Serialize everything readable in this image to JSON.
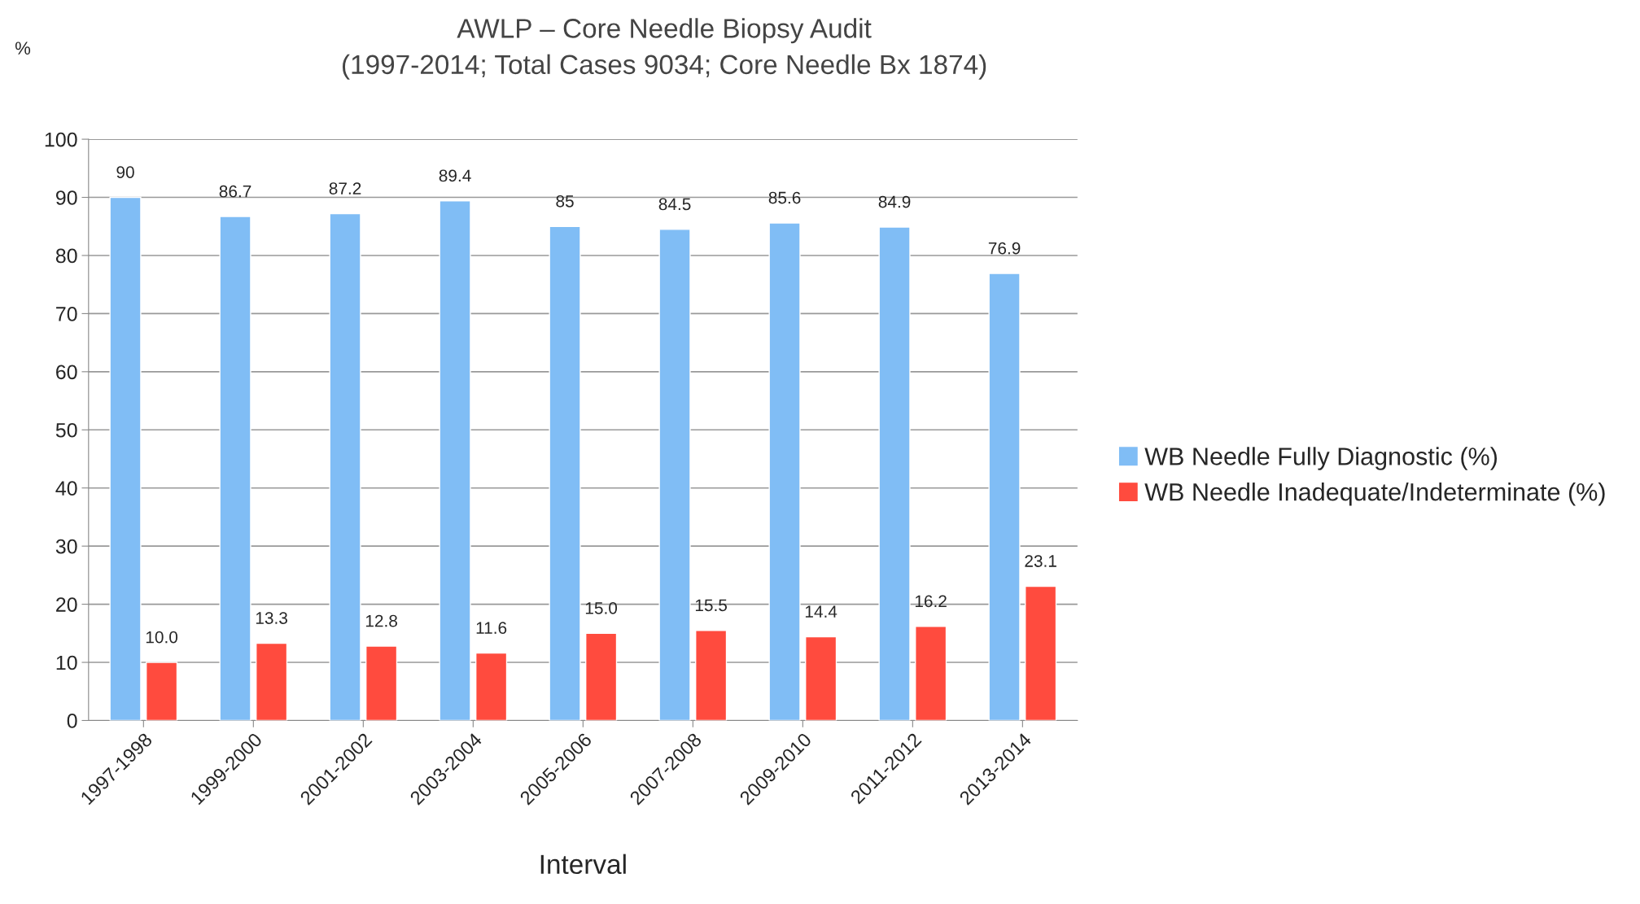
{
  "chart_data": {
    "type": "bar",
    "title": "AWLP – Core Needle Biopsy Audit",
    "subtitle": "(1997-2014; Total Cases 9034; Core Needle Bx 1874)",
    "ylabel": "%",
    "xlabel": "Interval",
    "categories": [
      "1997-1998",
      "1999-2000",
      "2001-2002",
      "2003-2004",
      "2005-2006",
      "2007-2008",
      "2009-2010",
      "2011-2012",
      "2013-2014"
    ],
    "series": [
      {
        "name": "WB Needle Fully Diagnostic (%)",
        "color": "#80bdf5",
        "values": [
          90,
          86.7,
          87.2,
          89.4,
          85,
          84.5,
          85.6,
          84.9,
          76.9
        ],
        "value_labels": [
          "90",
          "86.7",
          "87.2",
          "89.4",
          "85",
          "84.5",
          "85.6",
          "84.9",
          "76.9"
        ]
      },
      {
        "name": "WB Needle Inadequate/Indeterminate (%)",
        "color": "#ff4b3e",
        "values": [
          10.0,
          13.3,
          12.8,
          11.6,
          15.0,
          15.5,
          14.4,
          16.2,
          23.1
        ],
        "value_labels": [
          "10.0",
          "13.3",
          "12.8",
          "11.6",
          "15.0",
          "15.5",
          "14.4",
          "16.2",
          "23.1"
        ]
      }
    ],
    "ylim": [
      0,
      100
    ],
    "yticks": [
      0,
      10,
      20,
      30,
      40,
      50,
      60,
      70,
      80,
      90,
      100
    ],
    "grid": "y",
    "legend": "right"
  }
}
